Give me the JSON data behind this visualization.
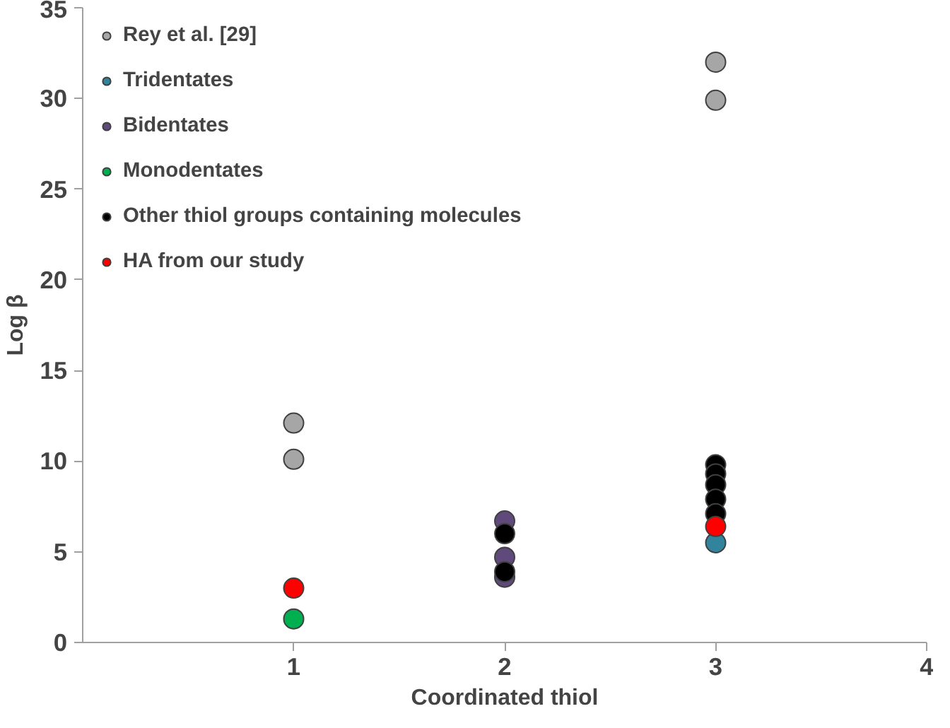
{
  "chart_data": {
    "type": "scatter",
    "xlabel": "Coordinated thiol",
    "ylabel": "Log β",
    "xlim": [
      0,
      4
    ],
    "xticks": [
      1,
      2,
      3,
      4
    ],
    "ylim": [
      0,
      35
    ],
    "yticks": [
      0,
      5,
      10,
      15,
      20,
      25,
      30,
      35
    ],
    "grid": false,
    "legend": "top left",
    "marker": "circle",
    "series": [
      {
        "name": "Rey et al. [29]",
        "color": "#a6a6a6",
        "x": [
          1,
          1,
          3,
          3
        ],
        "values": [
          12.1,
          10.1,
          32.0,
          29.9
        ]
      },
      {
        "name": "Tridentates",
        "color": "#31849b",
        "x": [
          3
        ],
        "values": [
          5.5
        ]
      },
      {
        "name": "Bidentates",
        "color": "#604a7b",
        "x": [
          2,
          2,
          2
        ],
        "values": [
          6.7,
          4.7,
          3.6
        ]
      },
      {
        "name": "Monodentates",
        "color": "#00b050",
        "x": [
          1
        ],
        "values": [
          1.3
        ]
      },
      {
        "name": "Other thiol groups containing molecules",
        "color": "#000000",
        "x": [
          2,
          2,
          3,
          3,
          3,
          3,
          3
        ],
        "values": [
          6.0,
          3.9,
          9.8,
          9.3,
          8.7,
          7.9,
          7.1
        ]
      },
      {
        "name": "HA from our study",
        "color": "#ff0000",
        "x": [
          1,
          3
        ],
        "values": [
          3.0,
          6.4
        ]
      }
    ]
  }
}
